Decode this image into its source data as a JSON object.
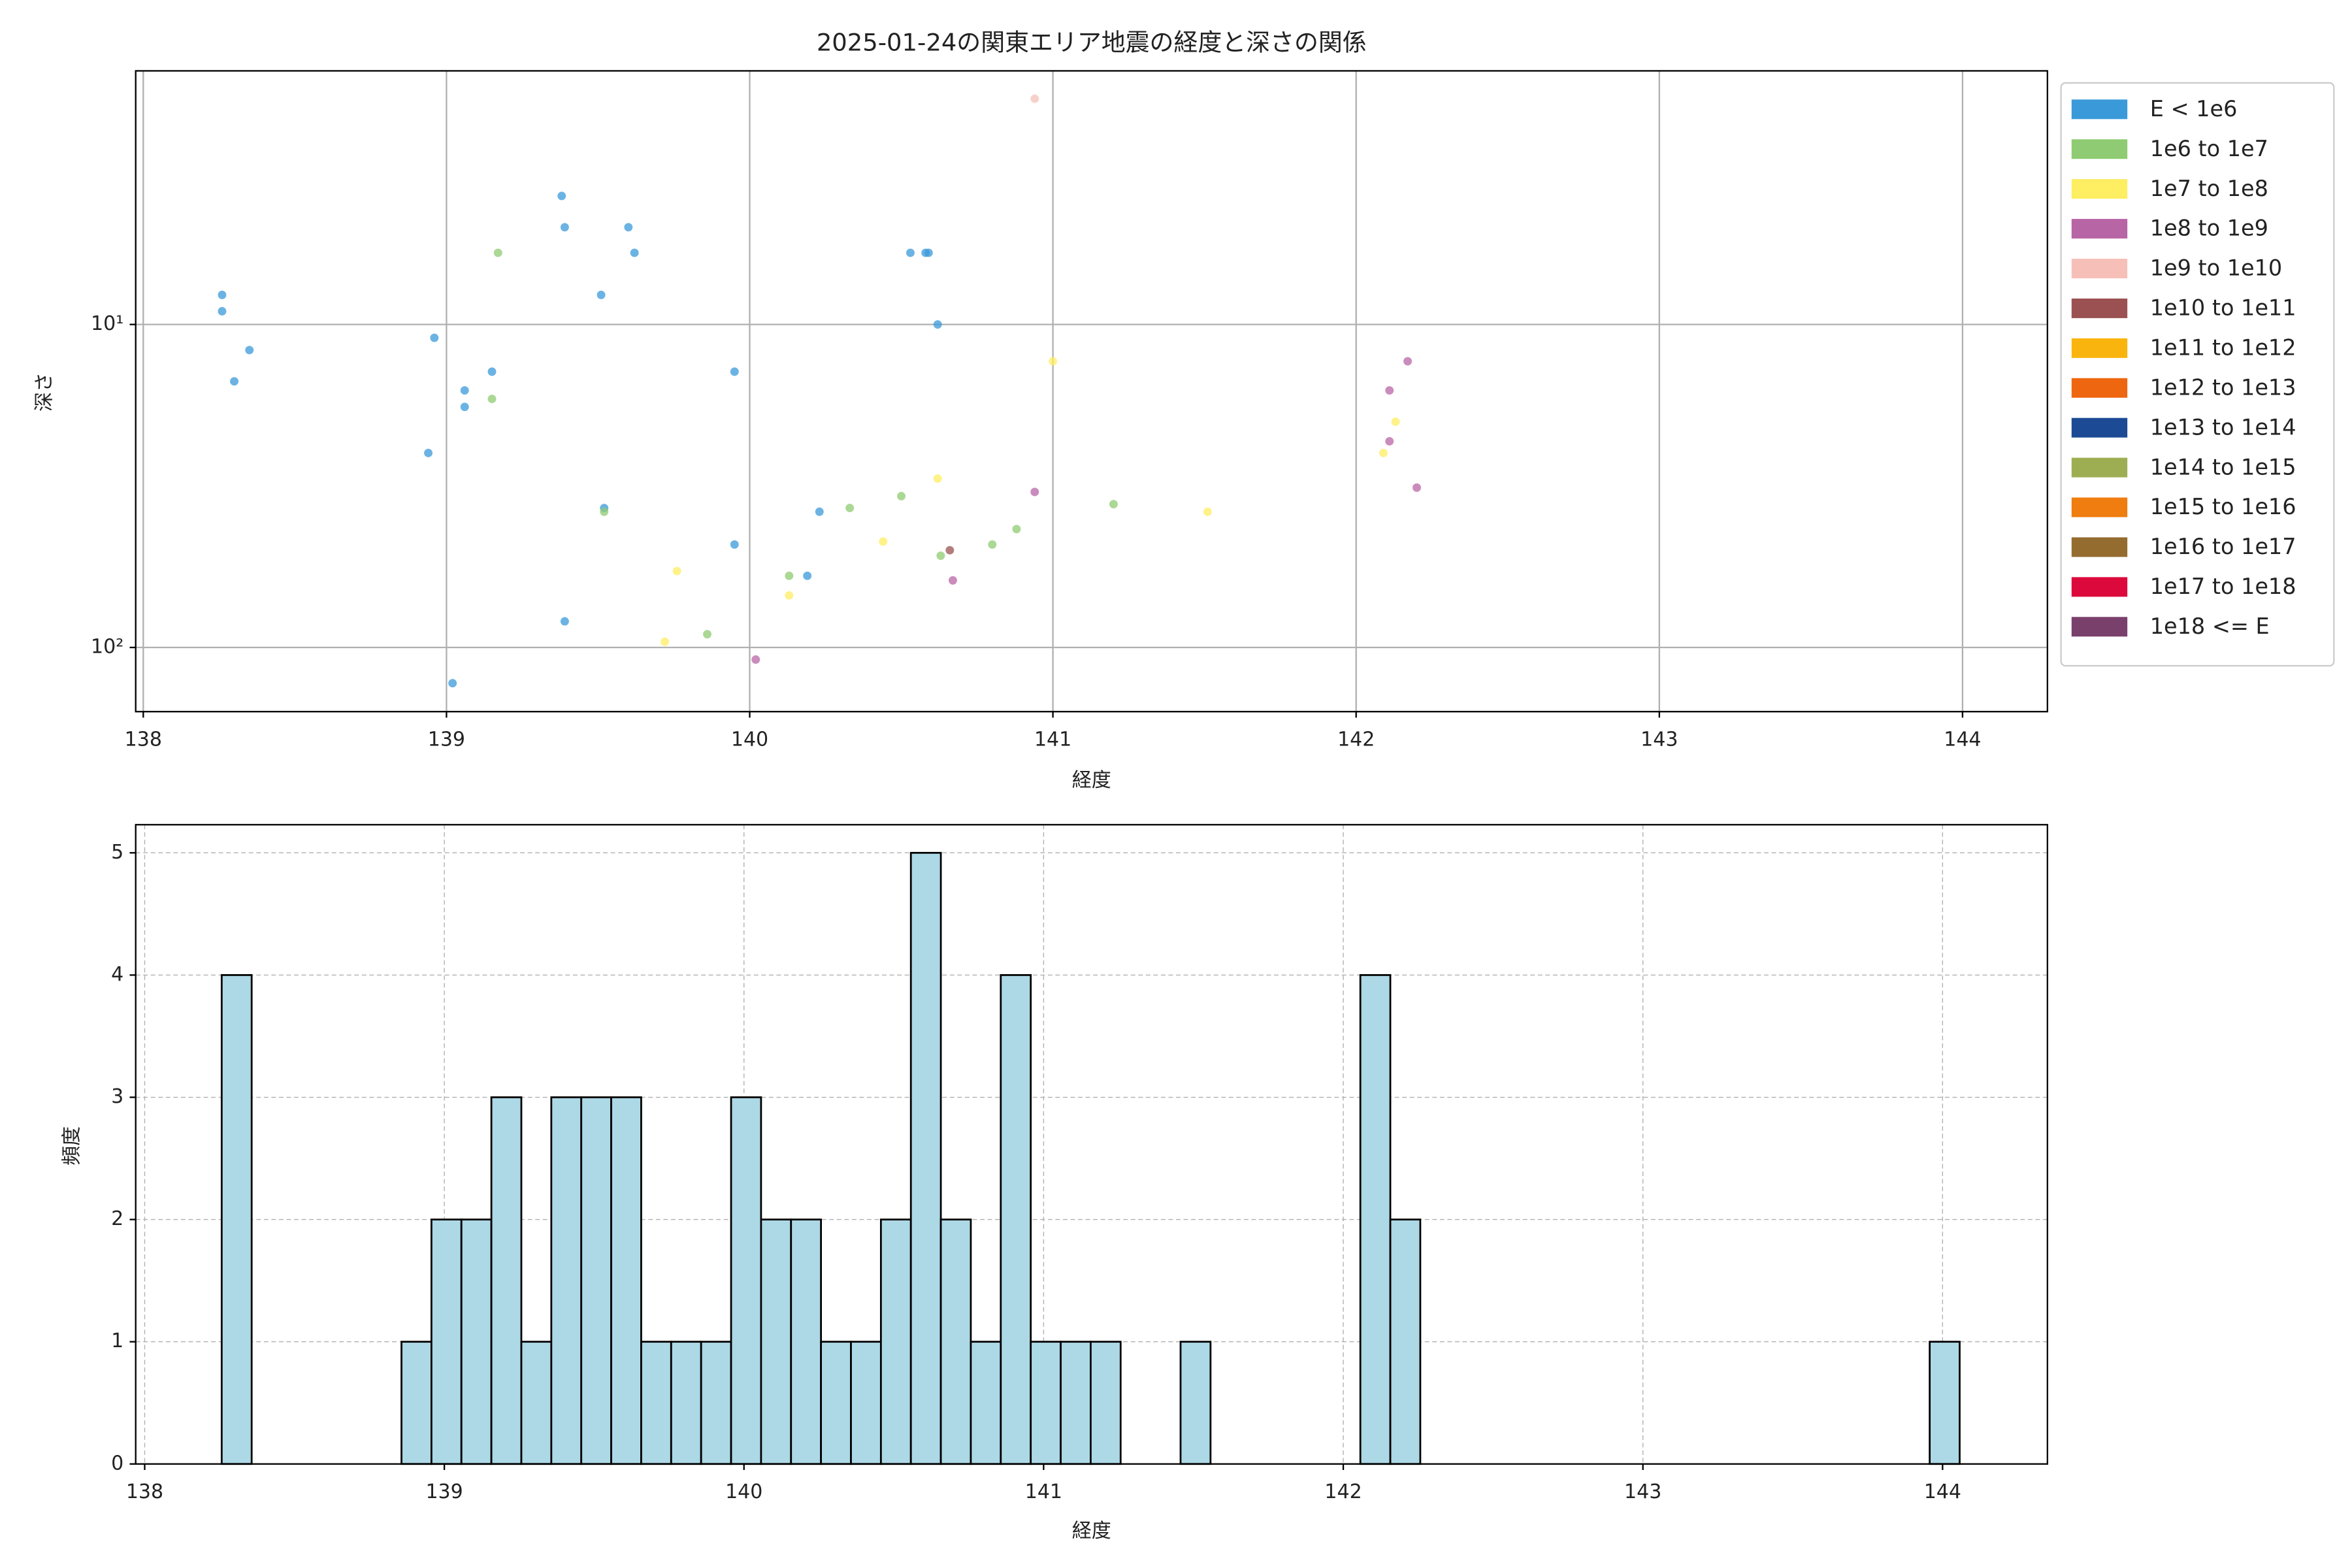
{
  "chart_data": [
    {
      "type": "scatter",
      "title": "2025-01-24の関東エリア地震の経度と深さの関係",
      "x_label": "経度",
      "y_label": "深さ",
      "yscale": "log",
      "grid": true,
      "grid_linestyle": "solid",
      "legend": "outside-right",
      "xlim": [
        137.975,
        144.28
      ],
      "xticks": [
        138,
        139,
        140,
        141,
        142,
        143,
        144
      ],
      "ylim": [
        158,
        1.64
      ],
      "yticks": [
        {
          "value": 10,
          "label": "10¹"
        },
        {
          "value": 100,
          "label": "10²"
        }
      ],
      "series": [
        {
          "name": "E < 1e6",
          "color": "#3a9ad9",
          "x": [
            138.26,
            138.26,
            138.35,
            138.3,
            138.96,
            138.94,
            139.06,
            139.06,
            139.15,
            139.38,
            139.39,
            139.6,
            139.62,
            139.51,
            139.52,
            139.39,
            139.02,
            139.95,
            139.95,
            140.23,
            140.19,
            140.53,
            140.58,
            140.59,
            140.62
          ],
          "values": [
            8.1,
            9.1,
            12,
            15,
            11,
            25,
            16,
            18,
            14,
            4.0,
            5.0,
            5.0,
            6.0,
            8.1,
            37,
            83,
            129,
            14,
            48,
            38,
            60,
            6.0,
            6.0,
            6.0,
            10
          ]
        },
        {
          "name": "1e6 to 1e7",
          "color": "#8fcb72",
          "x": [
            139.17,
            139.15,
            139.52,
            139.86,
            140.13,
            140.33,
            140.5,
            140.63,
            140.8,
            140.88,
            141.2
          ],
          "values": [
            6.0,
            17,
            38,
            91,
            60,
            37,
            34,
            52,
            48,
            43,
            36
          ]
        },
        {
          "name": "1e7 to 1e8",
          "color": "#fdee62",
          "x": [
            139.72,
            139.76,
            140.13,
            140.44,
            140.62,
            141.0,
            141.51,
            142.09,
            142.13
          ],
          "values": [
            96,
            58,
            69,
            47,
            30,
            13,
            38,
            25,
            20
          ]
        },
        {
          "name": "1e8 to 1e9",
          "color": "#b865a6",
          "x": [
            140.02,
            140.67,
            140.94,
            142.11,
            142.11,
            142.17,
            142.2
          ],
          "values": [
            109,
            62,
            33,
            16,
            23,
            13,
            32
          ]
        },
        {
          "name": "1e9 to 1e10",
          "color": "#f6c0b9",
          "x": [
            140.94
          ],
          "values": [
            2.0
          ]
        },
        {
          "name": "1e10 to 1e11",
          "color": "#9b5151",
          "x": [
            140.66
          ],
          "values": [
            50
          ]
        },
        {
          "name": "1e11 to 1e12",
          "color": "#f9b40d",
          "x": [],
          "values": []
        },
        {
          "name": "1e12 to 1e13",
          "color": "#ee6710",
          "x": [],
          "values": []
        },
        {
          "name": "1e13 to 1e14",
          "color": "#1c4a94",
          "x": [],
          "values": []
        },
        {
          "name": "1e14 to 1e15",
          "color": "#9dae52",
          "x": [],
          "values": []
        },
        {
          "name": "1e15 to 1e16",
          "color": "#ef7d10",
          "x": [],
          "values": []
        },
        {
          "name": "1e16 to 1e17",
          "color": "#946c30",
          "x": [],
          "values": []
        },
        {
          "name": "1e17 to 1e18",
          "color": "#dc0a3c",
          "x": [],
          "values": []
        },
        {
          "name": "1e18 <= E",
          "color": "#7a406c",
          "x": [],
          "values": []
        }
      ]
    },
    {
      "type": "histogram",
      "x_label": "経度",
      "y_label": "頻度",
      "grid": true,
      "grid_linestyle": "dashed",
      "color": "#add8e6",
      "edgecolor": "#000000",
      "xlim": [
        137.97,
        144.35
      ],
      "xticks": [
        138,
        139,
        140,
        141,
        142,
        143,
        144
      ],
      "ylim": [
        0,
        5.23
      ],
      "yticks": [
        0,
        1,
        2,
        3,
        4,
        5
      ],
      "bins": [
        138.257,
        138.357,
        138.457,
        138.557,
        138.657,
        138.757,
        138.857,
        138.957,
        139.057,
        139.157,
        139.257,
        139.357,
        139.457,
        139.557,
        139.657,
        139.757,
        139.857,
        139.957,
        140.057,
        140.157,
        140.257,
        140.357,
        140.457,
        140.557,
        140.657,
        140.757,
        140.857,
        140.957,
        141.057,
        141.157,
        141.257,
        141.357,
        141.457,
        141.557,
        141.657,
        141.757,
        141.857,
        141.957,
        142.057,
        142.157,
        142.257,
        142.357,
        142.457,
        142.557,
        142.657,
        142.757,
        142.857,
        142.957,
        143.057,
        143.157,
        143.257,
        143.357,
        143.457,
        143.557,
        143.657,
        143.757,
        143.857,
        143.957,
        144.057
      ],
      "counts": [
        4,
        0,
        0,
        0,
        0,
        0,
        1,
        2,
        2,
        3,
        1,
        3,
        3,
        3,
        1,
        1,
        1,
        3,
        2,
        2,
        1,
        1,
        2,
        5,
        2,
        1,
        4,
        1,
        1,
        1,
        0,
        0,
        1,
        0,
        0,
        0,
        0,
        0,
        4,
        2,
        0,
        0,
        0,
        0,
        0,
        0,
        0,
        0,
        0,
        0,
        0,
        0,
        0,
        0,
        0,
        0,
        0,
        1
      ]
    }
  ]
}
